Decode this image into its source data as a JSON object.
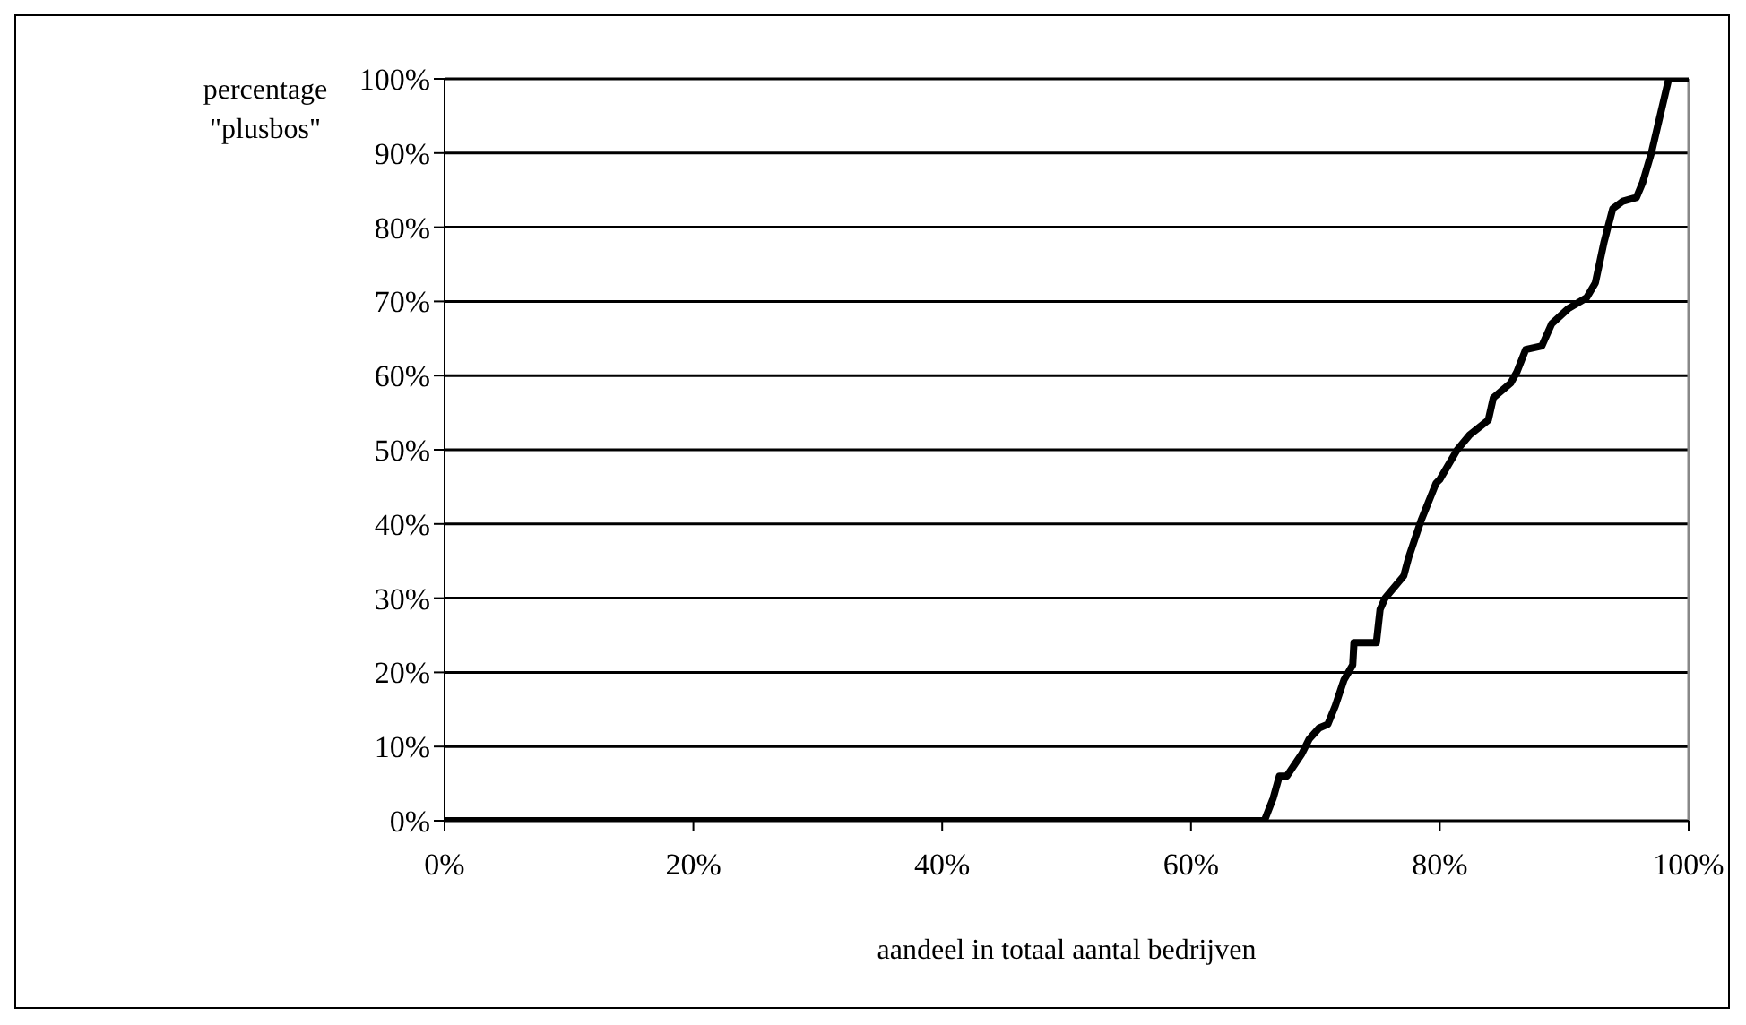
{
  "chart_data": {
    "type": "line",
    "xlabel": "aandeel in totaal aantal bedrijven",
    "ylabel": "percentage \"plusbos\"",
    "x": [
      0,
      65.9,
      66.6,
      67.1,
      67.7,
      68.9,
      69.5,
      70.3,
      71.0,
      71.6,
      72.3,
      73.0,
      73.1,
      74.9,
      75.2,
      75.6,
      77.1,
      77.5,
      78.5,
      79.7,
      80.0,
      81.4,
      82.4,
      83.9,
      84.3,
      85.7,
      86.2,
      86.9,
      88.2,
      89.0,
      90.3,
      91.8,
      92.5,
      93.2,
      93.9,
      94.7,
      95.8,
      96.3,
      97.0,
      98.4,
      100
    ],
    "series": [
      {
        "color": "#000000",
        "values": [
          0,
          0,
          3,
          6,
          6,
          9,
          11,
          12.5,
          13,
          15.5,
          19,
          21,
          24,
          24,
          28.5,
          30,
          33,
          35.5,
          40.5,
          45.5,
          46,
          50,
          52,
          54,
          57,
          59,
          60.5,
          63.5,
          64,
          67,
          69,
          70.5,
          72.5,
          78,
          82.5,
          83.5,
          84,
          86,
          90,
          100,
          100
        ]
      }
    ],
    "xlim": [
      0,
      100
    ],
    "ylim": [
      0,
      100
    ],
    "xticks": [
      {
        "value": 0,
        "label": "0%"
      },
      {
        "value": 20,
        "label": "20%"
      },
      {
        "value": 40,
        "label": "40%"
      },
      {
        "value": 60,
        "label": "60%"
      },
      {
        "value": 80,
        "label": "80%"
      },
      {
        "value": 100,
        "label": "100%"
      }
    ],
    "yticks": [
      {
        "value": 0,
        "label": "0%"
      },
      {
        "value": 10,
        "label": "10%"
      },
      {
        "value": 20,
        "label": "20%"
      },
      {
        "value": 30,
        "label": "30%"
      },
      {
        "value": 40,
        "label": "40%"
      },
      {
        "value": 50,
        "label": "50%"
      },
      {
        "value": 60,
        "label": "60%"
      },
      {
        "value": 70,
        "label": "70%"
      },
      {
        "value": 80,
        "label": "80%"
      },
      {
        "value": 90,
        "label": "90%"
      },
      {
        "value": 100,
        "label": "100%"
      }
    ],
    "grid": "y",
    "marker": "none",
    "line_style": "solid"
  }
}
